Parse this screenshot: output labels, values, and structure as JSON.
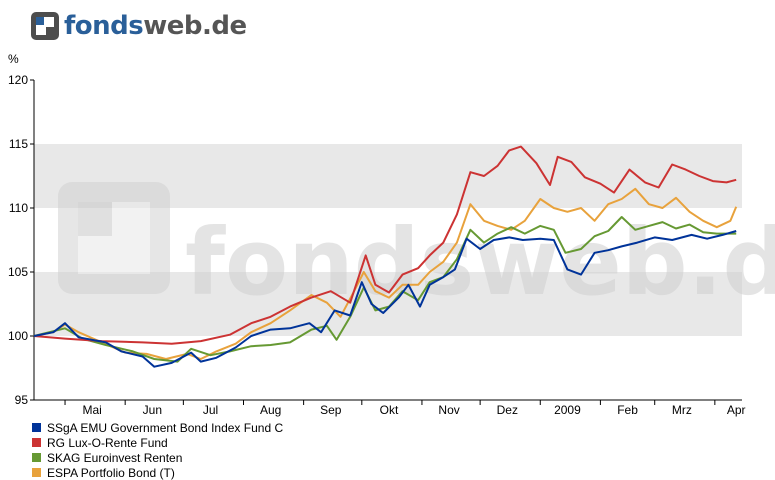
{
  "brand": {
    "name_part1": "fonds",
    "name_part2": "web.de",
    "watermark": "fondsweb.de"
  },
  "chart_data": {
    "type": "line",
    "unit_label": "%",
    "ylim": [
      95,
      120
    ],
    "y_ticks": [
      95,
      100,
      105,
      110,
      115,
      120
    ],
    "x_range": [
      "2008-04-15",
      "2009-04-15"
    ],
    "x_ticks": [
      {
        "label": "Mai",
        "date": "2008-05-15"
      },
      {
        "label": "Jun",
        "date": "2008-06-15"
      },
      {
        "label": "Jul",
        "date": "2008-07-15"
      },
      {
        "label": "Aug",
        "date": "2008-08-15"
      },
      {
        "label": "Sep",
        "date": "2008-09-15"
      },
      {
        "label": "Okt",
        "date": "2008-10-15"
      },
      {
        "label": "Nov",
        "date": "2008-11-15"
      },
      {
        "label": "Dez",
        "date": "2008-12-15"
      },
      {
        "label": "2009",
        "date": "2009-01-15"
      },
      {
        "label": "Feb",
        "date": "2009-02-15"
      },
      {
        "label": "Mrz",
        "date": "2009-03-15"
      },
      {
        "label": "Apr",
        "date": "2009-04-12"
      }
    ],
    "grid_bands": "alternating grey horizontal bands",
    "legend_position": "bottom-left",
    "series": [
      {
        "name": "SSgA EMU Government Bond Index Fund C",
        "color": "#003399",
        "points": [
          [
            "2008-04-15",
            100.0
          ],
          [
            "2008-04-25",
            100.3
          ],
          [
            "2008-05-01",
            101.0
          ],
          [
            "2008-05-08",
            99.9
          ],
          [
            "2008-05-22",
            99.5
          ],
          [
            "2008-05-30",
            98.8
          ],
          [
            "2008-06-10",
            98.4
          ],
          [
            "2008-06-16",
            97.6
          ],
          [
            "2008-06-25",
            97.9
          ],
          [
            "2008-07-05",
            98.7
          ],
          [
            "2008-07-10",
            98.0
          ],
          [
            "2008-07-18",
            98.3
          ],
          [
            "2008-07-28",
            99.1
          ],
          [
            "2008-08-05",
            100.0
          ],
          [
            "2008-08-15",
            100.5
          ],
          [
            "2008-08-25",
            100.6
          ],
          [
            "2008-09-04",
            101.0
          ],
          [
            "2008-09-10",
            100.3
          ],
          [
            "2008-09-17",
            102.0
          ],
          [
            "2008-09-25",
            101.6
          ],
          [
            "2008-10-01",
            104.2
          ],
          [
            "2008-10-06",
            102.5
          ],
          [
            "2008-10-12",
            101.8
          ],
          [
            "2008-10-20",
            103.0
          ],
          [
            "2008-10-25",
            104.0
          ],
          [
            "2008-10-31",
            102.3
          ],
          [
            "2008-11-05",
            104.0
          ],
          [
            "2008-11-12",
            104.6
          ],
          [
            "2008-11-18",
            105.2
          ],
          [
            "2008-11-24",
            107.6
          ],
          [
            "2008-12-01",
            106.8
          ],
          [
            "2008-12-08",
            107.5
          ],
          [
            "2008-12-16",
            107.7
          ],
          [
            "2008-12-23",
            107.5
          ],
          [
            "2009-01-01",
            107.6
          ],
          [
            "2009-01-08",
            107.5
          ],
          [
            "2009-01-15",
            105.2
          ],
          [
            "2009-01-22",
            104.8
          ],
          [
            "2009-01-29",
            106.5
          ],
          [
            "2009-02-05",
            106.7
          ],
          [
            "2009-02-12",
            107.0
          ],
          [
            "2009-02-20",
            107.3
          ],
          [
            "2009-03-01",
            107.7
          ],
          [
            "2009-03-10",
            107.5
          ],
          [
            "2009-03-20",
            107.9
          ],
          [
            "2009-03-28",
            107.6
          ],
          [
            "2009-04-05",
            107.9
          ],
          [
            "2009-04-12",
            108.2
          ]
        ]
      },
      {
        "name": "RG Lux-O-Rente Fund",
        "color": "#cc3333",
        "points": [
          [
            "2008-04-15",
            100.0
          ],
          [
            "2008-05-01",
            99.8
          ],
          [
            "2008-05-20",
            99.6
          ],
          [
            "2008-06-10",
            99.5
          ],
          [
            "2008-06-25",
            99.4
          ],
          [
            "2008-07-10",
            99.6
          ],
          [
            "2008-07-25",
            100.1
          ],
          [
            "2008-08-05",
            101.0
          ],
          [
            "2008-08-15",
            101.5
          ],
          [
            "2008-08-25",
            102.3
          ],
          [
            "2008-09-05",
            103.0
          ],
          [
            "2008-09-15",
            103.5
          ],
          [
            "2008-09-25",
            102.6
          ],
          [
            "2008-10-03",
            106.3
          ],
          [
            "2008-10-08",
            104.0
          ],
          [
            "2008-10-15",
            103.4
          ],
          [
            "2008-10-22",
            104.8
          ],
          [
            "2008-10-30",
            105.3
          ],
          [
            "2008-11-05",
            106.3
          ],
          [
            "2008-11-12",
            107.3
          ],
          [
            "2008-11-19",
            109.5
          ],
          [
            "2008-11-26",
            112.8
          ],
          [
            "2008-12-03",
            112.5
          ],
          [
            "2008-12-10",
            113.3
          ],
          [
            "2008-12-16",
            114.5
          ],
          [
            "2008-12-22",
            114.8
          ],
          [
            "2008-12-30",
            113.5
          ],
          [
            "2009-01-06",
            111.8
          ],
          [
            "2009-01-10",
            114.0
          ],
          [
            "2009-01-17",
            113.6
          ],
          [
            "2009-01-24",
            112.4
          ],
          [
            "2009-02-01",
            111.9
          ],
          [
            "2009-02-08",
            111.2
          ],
          [
            "2009-02-16",
            113.0
          ],
          [
            "2009-02-24",
            112.0
          ],
          [
            "2009-03-03",
            111.6
          ],
          [
            "2009-03-10",
            113.4
          ],
          [
            "2009-03-17",
            113.0
          ],
          [
            "2009-03-24",
            112.5
          ],
          [
            "2009-03-31",
            112.1
          ],
          [
            "2009-04-07",
            112.0
          ],
          [
            "2009-04-12",
            112.2
          ]
        ]
      },
      {
        "name": "SKAG Euroinvest Renten",
        "color": "#669933",
        "points": [
          [
            "2008-04-15",
            100.0
          ],
          [
            "2008-05-01",
            100.6
          ],
          [
            "2008-05-10",
            99.8
          ],
          [
            "2008-05-22",
            99.3
          ],
          [
            "2008-06-05",
            98.8
          ],
          [
            "2008-06-16",
            98.2
          ],
          [
            "2008-06-28",
            98.0
          ],
          [
            "2008-07-05",
            99.0
          ],
          [
            "2008-07-15",
            98.5
          ],
          [
            "2008-07-25",
            98.8
          ],
          [
            "2008-08-05",
            99.2
          ],
          [
            "2008-08-15",
            99.3
          ],
          [
            "2008-08-25",
            99.5
          ],
          [
            "2008-09-05",
            100.5
          ],
          [
            "2008-09-13",
            100.8
          ],
          [
            "2008-09-18",
            99.7
          ],
          [
            "2008-09-25",
            101.5
          ],
          [
            "2008-10-02",
            103.8
          ],
          [
            "2008-10-08",
            102.0
          ],
          [
            "2008-10-15",
            102.3
          ],
          [
            "2008-10-22",
            103.5
          ],
          [
            "2008-10-30",
            102.8
          ],
          [
            "2008-11-05",
            104.2
          ],
          [
            "2008-11-12",
            104.6
          ],
          [
            "2008-11-19",
            106.0
          ],
          [
            "2008-11-26",
            108.3
          ],
          [
            "2008-12-03",
            107.3
          ],
          [
            "2008-12-10",
            108.0
          ],
          [
            "2008-12-17",
            108.5
          ],
          [
            "2008-12-24",
            108.0
          ],
          [
            "2009-01-01",
            108.6
          ],
          [
            "2009-01-08",
            108.3
          ],
          [
            "2009-01-14",
            106.5
          ],
          [
            "2009-01-22",
            106.8
          ],
          [
            "2009-01-29",
            107.8
          ],
          [
            "2009-02-05",
            108.2
          ],
          [
            "2009-02-12",
            109.3
          ],
          [
            "2009-02-19",
            108.3
          ],
          [
            "2009-02-26",
            108.6
          ],
          [
            "2009-03-05",
            108.9
          ],
          [
            "2009-03-12",
            108.4
          ],
          [
            "2009-03-19",
            108.7
          ],
          [
            "2009-03-26",
            108.1
          ],
          [
            "2009-04-02",
            108.0
          ],
          [
            "2009-04-12",
            108.0
          ]
        ]
      },
      {
        "name": "ESPA Portfolio Bond (T)",
        "color": "#e8a23c",
        "points": [
          [
            "2008-04-15",
            100.0
          ],
          [
            "2008-04-25",
            100.3
          ],
          [
            "2008-05-01",
            100.9
          ],
          [
            "2008-05-08",
            100.3
          ],
          [
            "2008-05-20",
            99.5
          ],
          [
            "2008-06-01",
            98.7
          ],
          [
            "2008-06-12",
            98.6
          ],
          [
            "2008-06-22",
            98.2
          ],
          [
            "2008-07-03",
            98.6
          ],
          [
            "2008-07-10",
            98.2
          ],
          [
            "2008-07-18",
            98.8
          ],
          [
            "2008-07-28",
            99.4
          ],
          [
            "2008-08-05",
            100.3
          ],
          [
            "2008-08-15",
            101.0
          ],
          [
            "2008-08-25",
            102.0
          ],
          [
            "2008-09-05",
            103.2
          ],
          [
            "2008-09-13",
            102.6
          ],
          [
            "2008-09-20",
            101.5
          ],
          [
            "2008-09-27",
            103.5
          ],
          [
            "2008-10-02",
            105.0
          ],
          [
            "2008-10-08",
            103.5
          ],
          [
            "2008-10-15",
            103.0
          ],
          [
            "2008-10-22",
            104.0
          ],
          [
            "2008-10-30",
            104.0
          ],
          [
            "2008-11-05",
            105.0
          ],
          [
            "2008-11-12",
            105.8
          ],
          [
            "2008-11-19",
            107.3
          ],
          [
            "2008-11-26",
            110.3
          ],
          [
            "2008-12-03",
            109.0
          ],
          [
            "2008-12-10",
            108.6
          ],
          [
            "2008-12-17",
            108.3
          ],
          [
            "2008-12-24",
            109.0
          ],
          [
            "2009-01-01",
            110.7
          ],
          [
            "2009-01-08",
            110.0
          ],
          [
            "2009-01-15",
            109.7
          ],
          [
            "2009-01-22",
            110.0
          ],
          [
            "2009-01-29",
            109.0
          ],
          [
            "2009-02-05",
            110.3
          ],
          [
            "2009-02-12",
            110.7
          ],
          [
            "2009-02-19",
            111.5
          ],
          [
            "2009-02-26",
            110.3
          ],
          [
            "2009-03-05",
            110.0
          ],
          [
            "2009-03-12",
            110.8
          ],
          [
            "2009-03-19",
            109.7
          ],
          [
            "2009-03-26",
            109.0
          ],
          [
            "2009-04-02",
            108.5
          ],
          [
            "2009-04-09",
            109.0
          ],
          [
            "2009-04-12",
            110.1
          ]
        ]
      }
    ]
  }
}
